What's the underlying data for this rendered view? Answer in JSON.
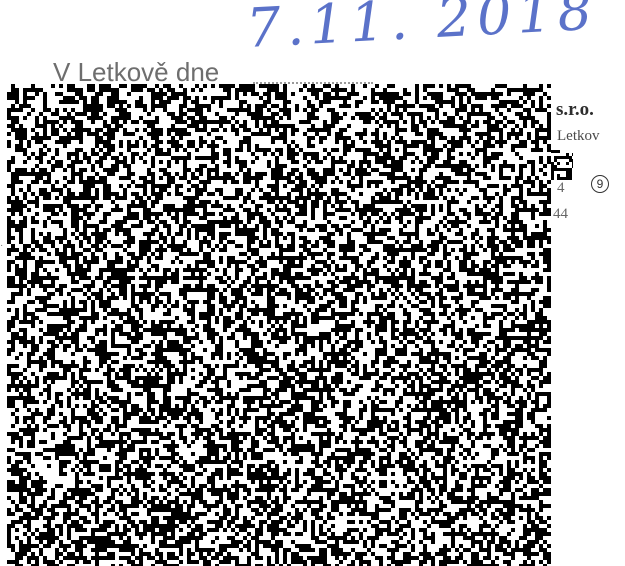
{
  "document": {
    "handwritten_date": "7.11. 2018",
    "place_date_label": "V Letkově dne",
    "stamp": {
      "company_suffix": "s.r.o.",
      "place_fragment": "Letkov",
      "circled_number": "9",
      "fragment_1": "4",
      "fragment_2": "44"
    }
  },
  "colors": {
    "ink_blue": "#5b72c9",
    "label_gray": "#6e6e6e",
    "stamp_dark": "#2e2e2e"
  }
}
